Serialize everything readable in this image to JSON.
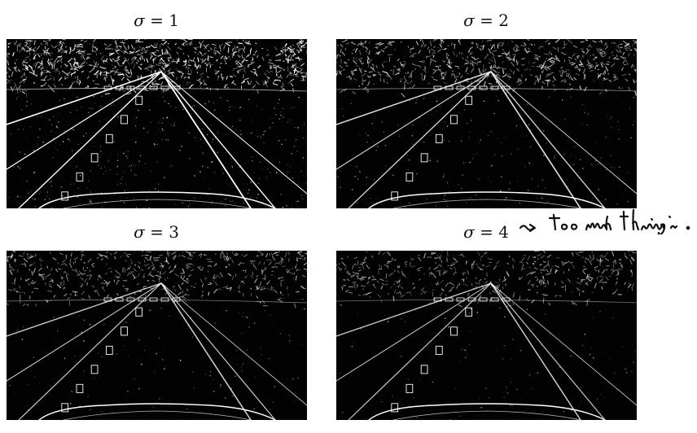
{
  "panels": [
    {
      "title_prefix": "σ = ",
      "sigma": "1",
      "edge_intensity": 1.0
    },
    {
      "title_prefix": "σ = ",
      "sigma": "2",
      "edge_intensity": 0.72
    },
    {
      "title_prefix": "σ = ",
      "sigma": "3",
      "edge_intensity": 0.55
    },
    {
      "title_prefix": "σ = ",
      "sigma": "4",
      "edge_intensity": 0.5
    }
  ],
  "annotation": {
    "text": "~> too much thinning."
  }
}
